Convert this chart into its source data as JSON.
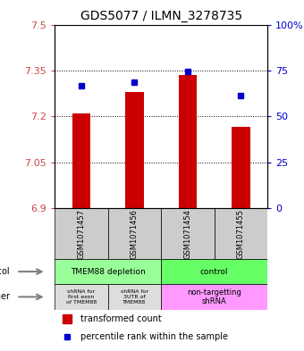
{
  "title": "GDS5077 / ILMN_3278735",
  "samples": [
    "GSM1071457",
    "GSM1071456",
    "GSM1071454",
    "GSM1071455"
  ],
  "bar_bottoms": [
    6.9,
    6.9,
    6.9,
    6.9
  ],
  "bar_tops": [
    7.21,
    7.28,
    7.335,
    7.165
  ],
  "blue_percentiles": [
    66.5,
    68.5,
    74.5,
    61.5
  ],
  "ylim_left": [
    6.9,
    7.5
  ],
  "ylim_right": [
    0,
    100
  ],
  "yticks_left": [
    6.9,
    7.05,
    7.2,
    7.35,
    7.5
  ],
  "yticks_right": [
    0,
    25,
    50,
    75,
    100
  ],
  "ytick_labels_left": [
    "6.9",
    "7.05",
    "7.2",
    "7.35",
    "7.5"
  ],
  "ytick_labels_right": [
    "0",
    "25",
    "50",
    "75",
    "100%"
  ],
  "bar_color": "#cc0000",
  "blue_color": "#0000cc",
  "protocol_labels": [
    "TMEM88 depletion",
    "control"
  ],
  "protocol_colors": [
    "#99ff99",
    "#66ff66"
  ],
  "other_label_0": "shRNA for\nfirst exon\nof TMEM88",
  "other_label_1": "shRNA for\n3UTR of\nTMEM88",
  "other_label_2": "non-targetting\nshRNA",
  "other_colors": [
    "#dddddd",
    "#dddddd",
    "#ff99ff"
  ],
  "background_color": "#ffffff",
  "plot_bg": "#ffffff"
}
